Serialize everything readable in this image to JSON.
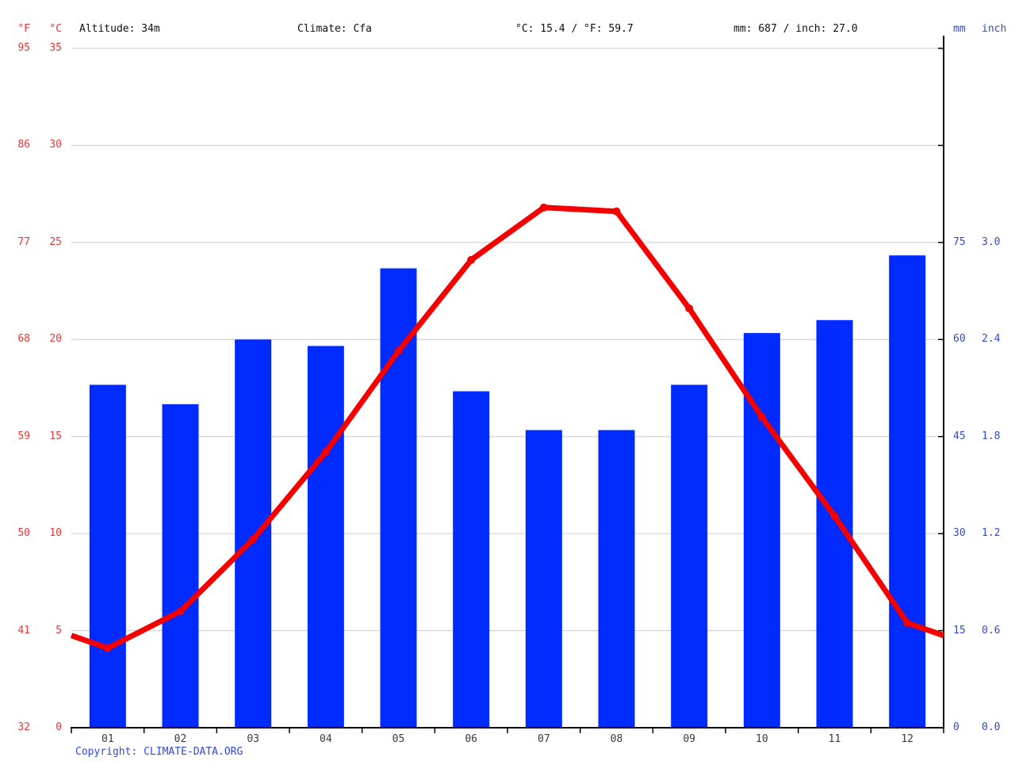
{
  "header": {
    "unit_f": "°F",
    "unit_c": "°C",
    "unit_mm": "mm",
    "unit_inch": "inch",
    "altitude": "Altitude: 34m",
    "climate": "Climate: Cfa",
    "temperature_summary": "°C: 15.4 / °F: 59.7",
    "precipitation_summary": "mm: 687 / inch: 27.0"
  },
  "footer": {
    "copyright": "Copyright: CLIMATE-DATA.ORG"
  },
  "colors": {
    "bar": "#002bff",
    "line": "#f40000",
    "grid": "#cccccc",
    "axis": "#000000",
    "red_text": "#f03535",
    "blue_text": "#2f49dd",
    "month_text": "#3a3a3a",
    "header_text": "#111111"
  },
  "chart_data": {
    "type": "bar",
    "categories": [
      "01",
      "02",
      "03",
      "04",
      "05",
      "06",
      "07",
      "08",
      "09",
      "10",
      "11",
      "12"
    ],
    "series": [
      {
        "name": "precipitation_mm",
        "type": "bar",
        "values": [
          53,
          50,
          60,
          59,
          71,
          52,
          46,
          46,
          53,
          61,
          63,
          73
        ]
      },
      {
        "name": "temperature_c",
        "type": "line",
        "values": [
          4.1,
          6.0,
          9.7,
          14.2,
          19.4,
          24.1,
          26.8,
          26.6,
          21.6,
          16.0,
          10.9,
          5.4
        ],
        "edge_value": 4.75
      }
    ],
    "axes": {
      "left_f_ticks": [
        95,
        86,
        77,
        68,
        59,
        50,
        41,
        32
      ],
      "left_c_ticks": [
        35,
        30,
        25,
        20,
        15,
        10,
        5,
        0
      ],
      "right_mm_ticks": [
        75,
        60,
        45,
        30,
        15,
        0
      ],
      "right_inch_ticks": [
        "3.0",
        "2.4",
        "1.8",
        "1.2",
        "0.6",
        "0.0"
      ],
      "c_range": [
        0,
        35
      ],
      "mm_per_c": 3
    },
    "grid": true,
    "legend": false,
    "annual_mean_c": 15.4,
    "annual_precip_mm": 687
  }
}
